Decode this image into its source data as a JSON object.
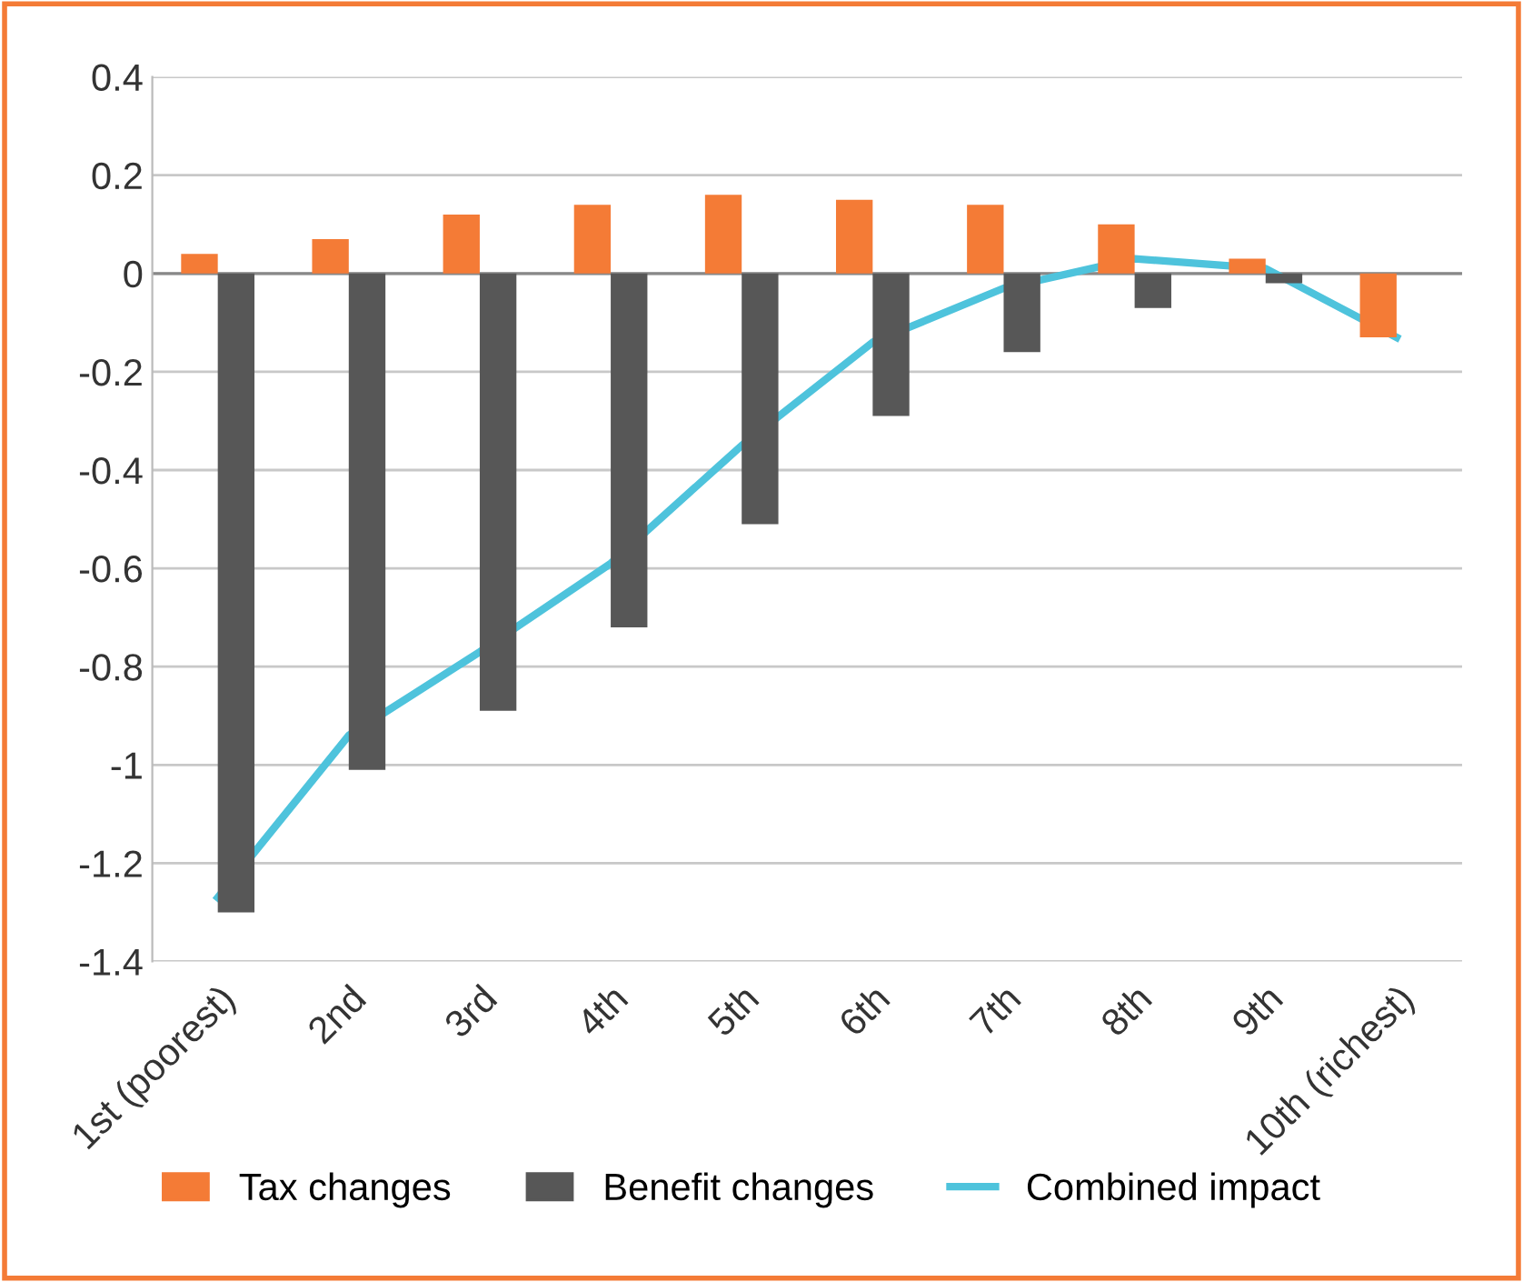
{
  "chart_data": {
    "type": "bar",
    "categories": [
      "1st (poorest)",
      "2nd",
      "3rd",
      "4th",
      "5th",
      "6th",
      "7th",
      "8th",
      "9th",
      "10th (richest)"
    ],
    "series": [
      {
        "name": "Tax changes",
        "color": "#f47b36",
        "values": [
          0.04,
          0.07,
          0.12,
          0.14,
          0.16,
          0.15,
          0.14,
          0.1,
          0.03,
          -0.13
        ]
      },
      {
        "name": "Benefit changes",
        "color": "#575757",
        "values": [
          -1.3,
          -1.01,
          -0.89,
          -0.72,
          -0.51,
          -0.29,
          -0.16,
          -0.07,
          -0.02,
          0
        ]
      },
      {
        "name": "Combined impact",
        "type": "line",
        "color": "#4ec3dc",
        "values": [
          -1.27,
          -0.94,
          -0.77,
          -0.59,
          -0.35,
          -0.14,
          -0.03,
          0.03,
          0.01,
          -0.13
        ]
      }
    ],
    "ylim": [
      -1.4,
      0.4
    ],
    "yticks": [
      {
        "value": -1.4,
        "label": "-1.4"
      },
      {
        "value": -1.2,
        "label": "-1.2"
      },
      {
        "value": -1,
        "label": "-1"
      },
      {
        "value": -0.8,
        "label": "-0.8"
      },
      {
        "value": -0.6,
        "label": "-0.6"
      },
      {
        "value": -0.4,
        "label": "-0.4"
      },
      {
        "value": -0.2,
        "label": "-0.2"
      },
      {
        "value": 0,
        "label": "0"
      },
      {
        "value": 0.2,
        "label": "0.2"
      },
      {
        "value": 0.4,
        "label": "0.4"
      }
    ],
    "grid": "y",
    "legend": "bottom"
  }
}
